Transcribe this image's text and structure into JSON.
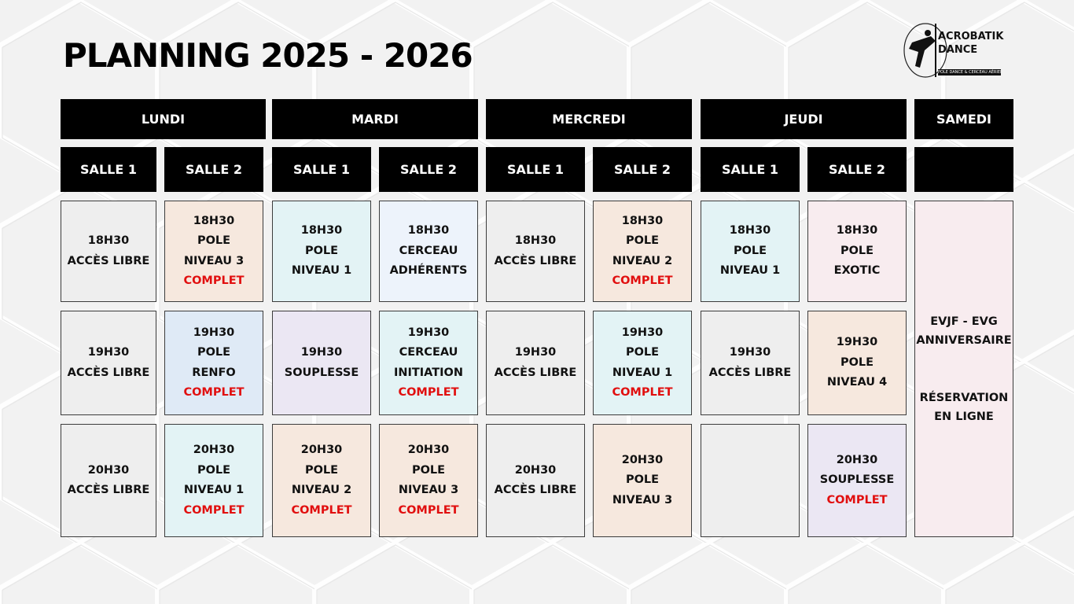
{
  "title": "PLANNING 2025 - 2026",
  "logo": {
    "line1": "ACROBATIK",
    "line2": "DANCE",
    "tagline": "POLE DANCE & CERCEAU AÉRIEN"
  },
  "colors": {
    "header_bg": "#000000",
    "complet": "#e10f0f",
    "gray": "#eeeeee",
    "peach": "#f6e8de",
    "cyan": "#e3f3f5",
    "lavender": "#ebe7f3",
    "blue": "#dfeaf6",
    "pink": "#f8ecef"
  },
  "days": [
    "LUNDI",
    "MARDI",
    "MERCREDI",
    "JEUDI",
    "SAMEDI"
  ],
  "rooms": [
    "SALLE 1",
    "SALLE 2",
    "SALLE 1",
    "SALLE 2",
    "SALLE 1",
    "SALLE 2",
    "SALLE 1",
    "SALLE 2"
  ],
  "schedule": [
    [
      {
        "lines": [
          "18H30",
          "ACCÈS LIBRE"
        ]
      },
      {
        "lines": [
          "18H30",
          "POLE",
          "NIVEAU 3"
        ],
        "status": "COMPLET"
      },
      {
        "lines": [
          "18H30",
          "POLE",
          "NIVEAU 1"
        ]
      },
      {
        "lines": [
          "18H30",
          "CERCEAU",
          "ADHÉRENTS"
        ]
      },
      {
        "lines": [
          "18H30",
          "ACCÈS LIBRE"
        ]
      },
      {
        "lines": [
          "18H30",
          "POLE",
          "NIVEAU 2"
        ],
        "status": "COMPLET"
      },
      {
        "lines": [
          "18H30",
          "POLE",
          "NIVEAU 1"
        ]
      },
      {
        "lines": [
          "18H30",
          "POLE",
          "EXOTIC"
        ]
      }
    ],
    [
      {
        "lines": [
          "19H30",
          "ACCÈS LIBRE"
        ]
      },
      {
        "lines": [
          "19H30",
          "POLE",
          "RENFO"
        ],
        "status": "COMPLET"
      },
      {
        "lines": [
          "19H30",
          "SOUPLESSE"
        ]
      },
      {
        "lines": [
          "19H30",
          "CERCEAU",
          "INITIATION"
        ],
        "status": "COMPLET"
      },
      {
        "lines": [
          "19H30",
          "ACCÈS LIBRE"
        ]
      },
      {
        "lines": [
          "19H30",
          "POLE",
          "NIVEAU 1"
        ],
        "status": "COMPLET"
      },
      {
        "lines": [
          "19H30",
          "ACCÈS LIBRE"
        ]
      },
      {
        "lines": [
          "19H30",
          "POLE",
          "NIVEAU 4"
        ]
      }
    ],
    [
      {
        "lines": [
          "20H30",
          "ACCÈS LIBRE"
        ]
      },
      {
        "lines": [
          "20H30",
          "POLE",
          "NIVEAU 1"
        ],
        "status": "COMPLET"
      },
      {
        "lines": [
          "20H30",
          "POLE",
          "NIVEAU 2"
        ],
        "status": "COMPLET"
      },
      {
        "lines": [
          "20H30",
          "POLE",
          "NIVEAU 3"
        ],
        "status": "COMPLET"
      },
      {
        "lines": [
          "20H30",
          "ACCÈS LIBRE"
        ]
      },
      {
        "lines": [
          "20H30",
          "POLE",
          "NIVEAU 3"
        ]
      },
      {
        "lines": []
      },
      {
        "lines": [
          "20H30",
          "SOUPLESSE"
        ],
        "status": "COMPLET"
      }
    ]
  ],
  "samedi": {
    "lines": [
      "EVJF - EVG",
      "ANNIVERSAIRE"
    ],
    "booking": [
      "RÉSERVATION",
      "EN LIGNE"
    ]
  }
}
